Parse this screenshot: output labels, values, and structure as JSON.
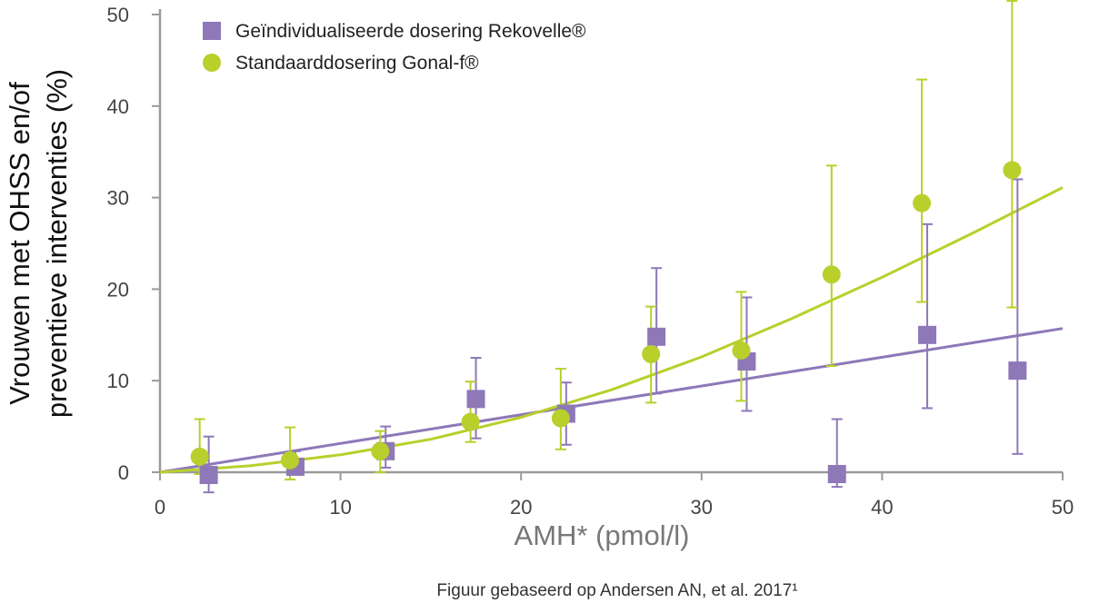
{
  "chart_data": {
    "type": "scatter",
    "title": "",
    "xlabel": "AMH* (pmol/l)",
    "ylabel_lines": [
      "Vrouwen met OHSS en/of",
      "preventieve interventies (%)"
    ],
    "xlim": [
      0,
      50
    ],
    "ylim": [
      0,
      50
    ],
    "xticks": [
      0,
      10,
      20,
      30,
      40,
      50
    ],
    "yticks": [
      0,
      10,
      20,
      30,
      40,
      50
    ],
    "grid": false,
    "legend_position": "top-left",
    "series": [
      {
        "name": "Geïndividualiseerde dosering Rekovelle®",
        "marker": "square",
        "color": "#8e78b8",
        "x": [
          2.7,
          7.5,
          12.5,
          17.5,
          22.5,
          27.5,
          32.5,
          37.5,
          42.5,
          47.5
        ],
        "y": [
          -0.3,
          0.6,
          2.3,
          8.0,
          6.4,
          14.8,
          12.1,
          -0.2,
          15.0,
          11.1
        ],
        "err_low": [
          -2.2,
          -0.2,
          0.5,
          3.7,
          3.0,
          8.6,
          6.7,
          -1.6,
          7.0,
          2.0
        ],
        "err_high": [
          3.9,
          2.3,
          5.0,
          12.5,
          9.8,
          22.3,
          19.1,
          5.8,
          27.1,
          32.0
        ],
        "trend_x": [
          0,
          50
        ],
        "trend_y": [
          0,
          15.7
        ]
      },
      {
        "name": "Standaarddosering Gonal-f®",
        "marker": "circle",
        "color": "#b9cf2b",
        "x": [
          2.2,
          7.2,
          12.2,
          17.2,
          22.2,
          27.2,
          32.2,
          37.2,
          42.2,
          47.2
        ],
        "y": [
          1.7,
          1.3,
          2.3,
          5.5,
          5.9,
          12.9,
          13.3,
          21.6,
          29.4,
          33.0
        ],
        "err_low": [
          -0.2,
          -0.8,
          0.0,
          3.3,
          2.5,
          7.6,
          7.8,
          11.6,
          18.6,
          18.0
        ],
        "err_high": [
          5.8,
          4.9,
          4.5,
          9.9,
          11.3,
          18.1,
          19.7,
          33.5,
          42.9,
          51.5
        ],
        "trend_x": [
          0,
          5,
          10,
          15,
          20,
          25,
          30,
          35,
          40,
          45,
          50
        ],
        "trend_y": [
          0,
          0.7,
          1.9,
          3.6,
          6.0,
          9.0,
          12.6,
          16.8,
          21.3,
          26.1,
          31.1
        ]
      }
    ]
  },
  "caption": "Figuur gebaseerd op Andersen AN, et al. 2017¹"
}
